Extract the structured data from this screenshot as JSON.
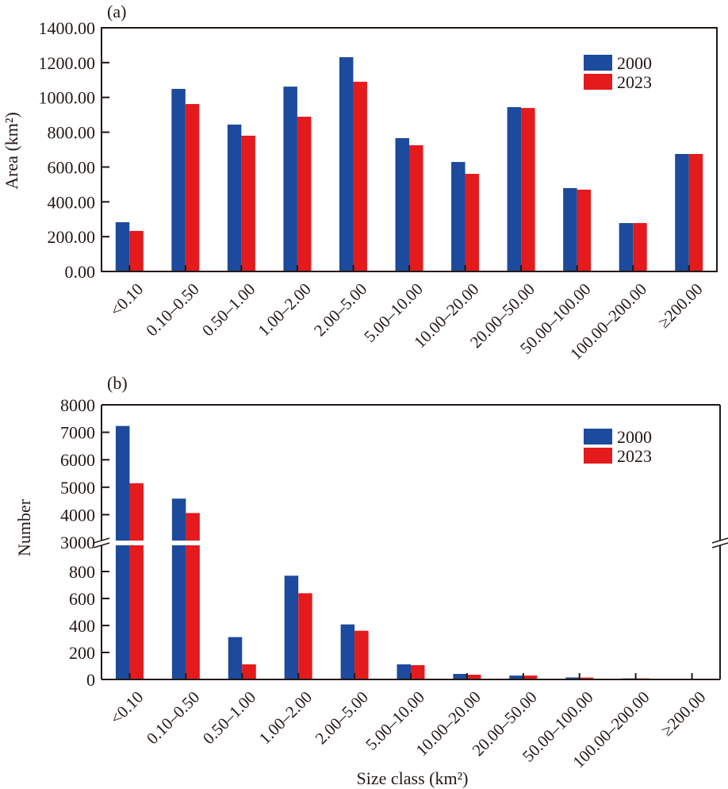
{
  "colors": {
    "series_2000": "#1c4a9c",
    "series_2023": "#e41a1c",
    "axis": "#231815"
  },
  "chart_data": [
    {
      "panel_label": "(a)",
      "type": "bar",
      "title": "",
      "xlabel": "",
      "ylabel": "Area (km²)",
      "ylim": [
        0,
        1400
      ],
      "yticks": [
        0,
        200,
        400,
        600,
        800,
        1000,
        1200,
        1400
      ],
      "ytick_labels": [
        "0.00",
        "200.00",
        "400.00",
        "600.00",
        "800.00",
        "1000.00",
        "1200.00",
        "1400.00"
      ],
      "categories": [
        "<0.10",
        "0.10–0.50",
        "0.50–1.00",
        "1.00–2.00",
        "2.00–5.00",
        "5.00–10.00",
        "10.00–20.00",
        "20.00–50.00",
        "50.00–100.00",
        "100.00–200.00",
        "≥200.00"
      ],
      "legend": {
        "position": "top-right",
        "entries": [
          "2000",
          "2023"
        ]
      },
      "series": [
        {
          "name": "2000",
          "values": [
            283,
            1049,
            844,
            1062,
            1231,
            766,
            629,
            944,
            479,
            278,
            675
          ]
        },
        {
          "name": "2023",
          "values": [
            233,
            962,
            780,
            889,
            1090,
            725,
            561,
            939,
            470,
            278,
            675
          ]
        }
      ]
    },
    {
      "panel_label": "(b)",
      "type": "bar",
      "title": "",
      "xlabel": "Size class (km²)",
      "ylabel": "Number",
      "axis_break": {
        "lower_range": [
          0,
          1000
        ],
        "upper_range": [
          3000,
          8000
        ]
      },
      "yticks": [
        0,
        200,
        400,
        600,
        800,
        3000,
        4000,
        5000,
        6000,
        7000,
        8000
      ],
      "ytick_labels": [
        "0",
        "200",
        "400",
        "600",
        "800",
        "3000",
        "4000",
        "5000",
        "6000",
        "7000",
        "8000"
      ],
      "categories": [
        "<0.10",
        "0.10–0.50",
        "0.50–1.00",
        "1.00–2.00",
        "2.00–5.00",
        "5.00–10.00",
        "10.00–20.00",
        "20.00–50.00",
        "50.00–100.00",
        "100.00–200.00",
        "≥200.00"
      ],
      "legend": {
        "position": "top-right",
        "entries": [
          "2000",
          "2023"
        ]
      },
      "series": [
        {
          "name": "2000",
          "values": [
            7230,
            4585,
            314,
            769,
            408,
            112,
            41,
            29,
            15,
            8,
            4
          ]
        },
        {
          "name": "2023",
          "values": [
            5146,
            4060,
            112,
            639,
            361,
            106,
            35,
            29,
            14,
            8,
            4
          ]
        }
      ]
    }
  ]
}
